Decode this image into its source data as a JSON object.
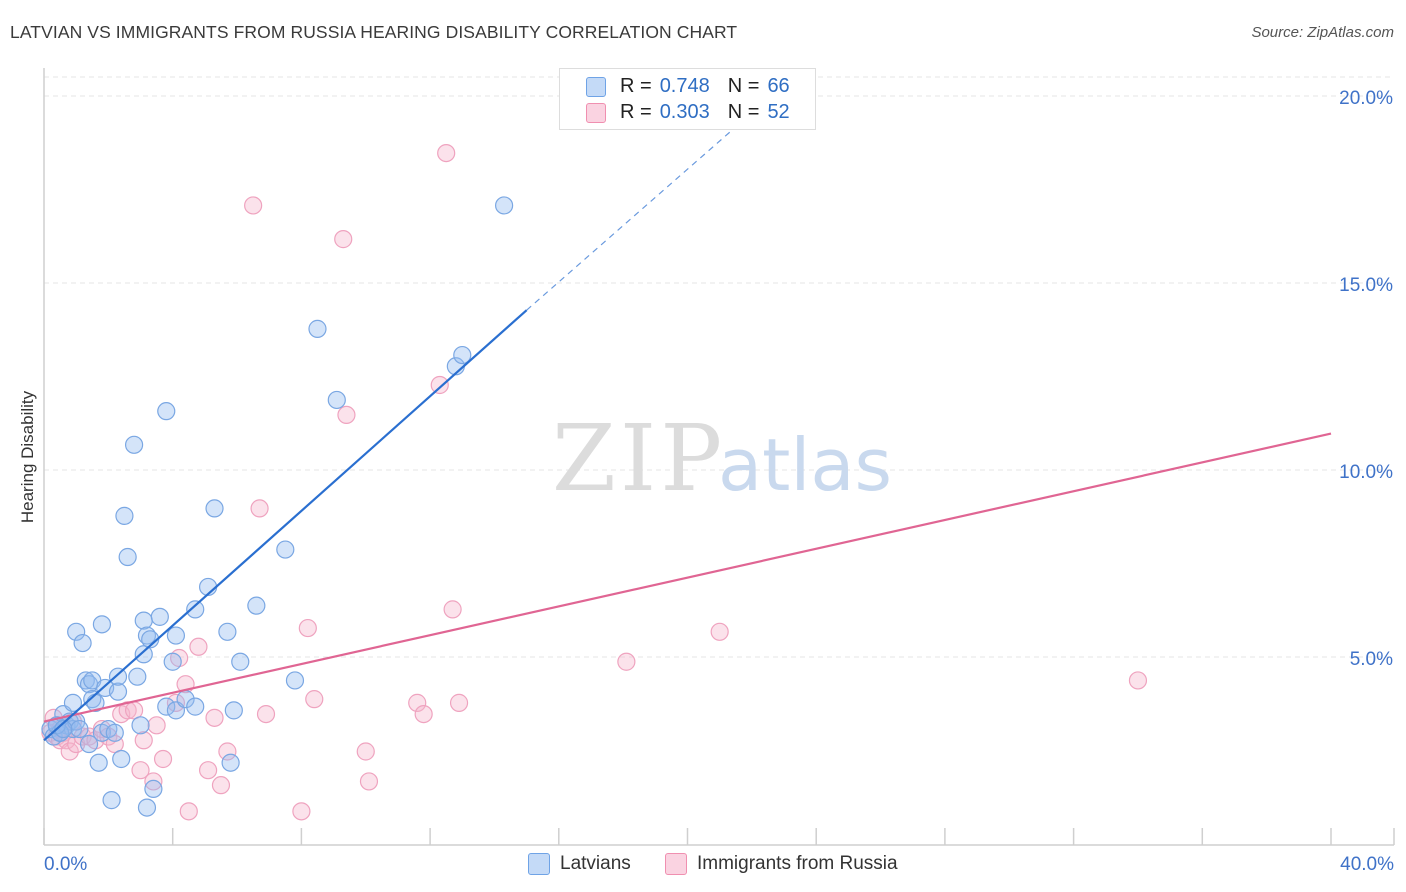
{
  "header": {
    "title": "LATVIAN VS IMMIGRANTS FROM RUSSIA HEARING DISABILITY CORRELATION CHART",
    "source": "Source: ZipAtlas.com"
  },
  "watermark": {
    "zip": "ZIP",
    "atlas": "atlas"
  },
  "legend_top": [
    {
      "r_label": "R =",
      "r_value": "0.748",
      "n_label": "N =",
      "n_value": "66",
      "color": "#6fa3e6"
    },
    {
      "r_label": "R =",
      "r_value": "0.303",
      "n_label": "N =",
      "n_value": "52",
      "color": "#f08fb0"
    }
  ],
  "legend_bottom": [
    {
      "label": "Latvians",
      "color": "#6fa3e6"
    },
    {
      "label": "Immigrants from Russia",
      "color": "#f08fb0"
    }
  ],
  "colors": {
    "blue_fill": "rgba(147,188,240,0.40)",
    "blue_stroke": "#7aa7e3",
    "blue_line": "#2a6fd0",
    "pink_fill": "rgba(246,182,205,0.40)",
    "pink_stroke": "#efa3bf",
    "pink_line": "#e06593",
    "axis_text": "#3f72c8",
    "grid": "#e4e4e4"
  },
  "chart_data": {
    "type": "scatter",
    "title": "LATVIAN VS IMMIGRANTS FROM RUSSIA HEARING DISABILITY CORRELATION CHART",
    "xlabel": "",
    "ylabel": "Hearing Disability",
    "xlim": [
      0,
      40
    ],
    "ylim": [
      0,
      20
    ],
    "x_tick_labels": [
      "0.0%",
      "40.0%"
    ],
    "y_ticks": [
      5,
      10,
      15,
      20
    ],
    "y_tick_labels": [
      "5.0%",
      "10.0%",
      "15.0%",
      "20.0%"
    ],
    "grid": true,
    "legend_position": "top-center",
    "series": [
      {
        "name": "Latvians",
        "points": [
          [
            0.2,
            3.1
          ],
          [
            0.3,
            2.9
          ],
          [
            0.4,
            3.2
          ],
          [
            0.5,
            3.0
          ],
          [
            0.6,
            3.5
          ],
          [
            0.7,
            3.2
          ],
          [
            0.8,
            3.3
          ],
          [
            0.9,
            3.1
          ],
          [
            0.9,
            3.8
          ],
          [
            1.0,
            3.3
          ],
          [
            1.0,
            5.7
          ],
          [
            1.1,
            3.1
          ],
          [
            1.2,
            5.4
          ],
          [
            1.3,
            4.4
          ],
          [
            1.4,
            4.3
          ],
          [
            1.4,
            2.7
          ],
          [
            1.5,
            4.4
          ],
          [
            1.5,
            3.9
          ],
          [
            1.6,
            3.8
          ],
          [
            1.7,
            2.2
          ],
          [
            1.8,
            5.9
          ],
          [
            1.8,
            3.0
          ],
          [
            1.9,
            4.2
          ],
          [
            2.0,
            3.1
          ],
          [
            2.1,
            1.2
          ],
          [
            2.2,
            3.0
          ],
          [
            2.3,
            4.1
          ],
          [
            2.3,
            4.5
          ],
          [
            2.4,
            2.3
          ],
          [
            2.5,
            8.8
          ],
          [
            2.6,
            7.7
          ],
          [
            2.8,
            10.7
          ],
          [
            2.9,
            4.5
          ],
          [
            3.0,
            3.2
          ],
          [
            3.1,
            5.1
          ],
          [
            3.1,
            6.0
          ],
          [
            3.2,
            1.0
          ],
          [
            3.2,
            5.6
          ],
          [
            3.3,
            5.5
          ],
          [
            3.4,
            1.5
          ],
          [
            3.6,
            6.1
          ],
          [
            3.8,
            11.6
          ],
          [
            3.8,
            3.7
          ],
          [
            4.0,
            4.9
          ],
          [
            4.1,
            5.6
          ],
          [
            4.1,
            3.6
          ],
          [
            4.4,
            3.9
          ],
          [
            4.7,
            3.7
          ],
          [
            4.7,
            6.3
          ],
          [
            5.1,
            6.9
          ],
          [
            5.3,
            9.0
          ],
          [
            5.7,
            5.7
          ],
          [
            5.8,
            2.2
          ],
          [
            5.9,
            3.6
          ],
          [
            6.1,
            4.9
          ],
          [
            6.6,
            6.4
          ],
          [
            7.5,
            7.9
          ],
          [
            7.8,
            4.4
          ],
          [
            8.5,
            13.8
          ],
          [
            9.1,
            11.9
          ],
          [
            12.8,
            12.8
          ],
          [
            13.0,
            13.1
          ],
          [
            14.3,
            17.1
          ],
          [
            0.5,
            3.0
          ],
          [
            0.4,
            3.2
          ],
          [
            0.6,
            3.1
          ]
        ]
      },
      {
        "name": "Immigrants from Russia",
        "points": [
          [
            0.2,
            3.0
          ],
          [
            0.3,
            3.4
          ],
          [
            0.4,
            2.9
          ],
          [
            0.5,
            2.8
          ],
          [
            0.6,
            3.0
          ],
          [
            0.7,
            2.8
          ],
          [
            0.8,
            2.5
          ],
          [
            0.9,
            3.3
          ],
          [
            1.0,
            2.7
          ],
          [
            1.2,
            2.9
          ],
          [
            1.4,
            2.9
          ],
          [
            1.6,
            2.8
          ],
          [
            1.8,
            3.1
          ],
          [
            2.0,
            2.9
          ],
          [
            2.2,
            2.7
          ],
          [
            2.4,
            3.5
          ],
          [
            2.6,
            3.6
          ],
          [
            2.8,
            3.6
          ],
          [
            3.0,
            2.0
          ],
          [
            3.1,
            2.8
          ],
          [
            3.4,
            1.7
          ],
          [
            3.5,
            3.2
          ],
          [
            3.7,
            2.3
          ],
          [
            4.1,
            3.8
          ],
          [
            4.2,
            5.0
          ],
          [
            4.4,
            4.3
          ],
          [
            4.5,
            0.9
          ],
          [
            4.8,
            5.3
          ],
          [
            5.1,
            2.0
          ],
          [
            5.3,
            3.4
          ],
          [
            5.5,
            1.6
          ],
          [
            5.7,
            2.5
          ],
          [
            6.5,
            17.1
          ],
          [
            6.7,
            9.0
          ],
          [
            6.9,
            3.5
          ],
          [
            8.0,
            0.9
          ],
          [
            8.2,
            5.8
          ],
          [
            8.4,
            3.9
          ],
          [
            9.3,
            16.2
          ],
          [
            9.4,
            11.5
          ],
          [
            10.0,
            2.5
          ],
          [
            10.1,
            1.7
          ],
          [
            11.6,
            3.8
          ],
          [
            11.8,
            3.5
          ],
          [
            12.3,
            12.3
          ],
          [
            12.5,
            18.5
          ],
          [
            12.7,
            6.3
          ],
          [
            12.9,
            3.8
          ],
          [
            18.1,
            4.9
          ],
          [
            21.0,
            5.7
          ],
          [
            34.0,
            4.4
          ],
          [
            0.5,
            3.1
          ]
        ]
      }
    ],
    "trend_lines": [
      {
        "series": "Latvians",
        "x_start": 0.0,
        "y_start": 2.8,
        "x_solid_end": 15.0,
        "y_solid_end": 14.3,
        "x_dash_end": 21.5,
        "y_dash_end": 19.2
      },
      {
        "series": "Immigrants from Russia",
        "x_start": 0.0,
        "y_start": 3.3,
        "x_end": 40.0,
        "y_end": 11.0
      }
    ]
  }
}
